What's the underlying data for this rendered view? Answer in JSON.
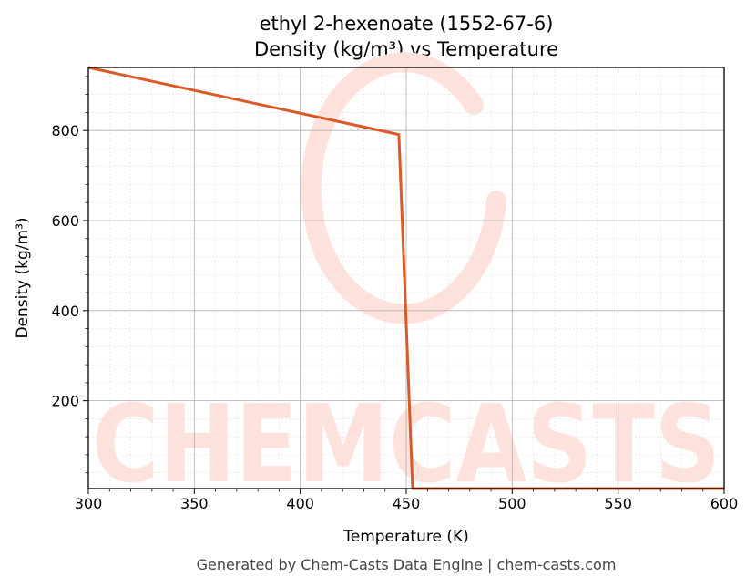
{
  "chart_data": {
    "type": "line",
    "title_line1": "ethyl 2-hexenoate (1552-67-6)",
    "title_line2": "Density (kg/m³) vs Temperature",
    "xlabel": "Temperature (K)",
    "ylabel": "Density (kg/m³)",
    "xlim": [
      300,
      600
    ],
    "ylim": [
      5,
      940
    ],
    "xticks": [
      300,
      350,
      400,
      450,
      500,
      550,
      600
    ],
    "yticks": [
      200,
      400,
      600,
      800
    ],
    "grid": true,
    "series": [
      {
        "color": "#d95a26",
        "x": [
          300,
          446.5,
          453,
          600
        ],
        "y": [
          940,
          791,
          5,
          5
        ]
      }
    ]
  },
  "watermark": {
    "text": "CHEMCASTS",
    "color": "#ffe2dc"
  },
  "footer": {
    "text": "Generated by Chem-Casts Data Engine | chem-casts.com"
  }
}
